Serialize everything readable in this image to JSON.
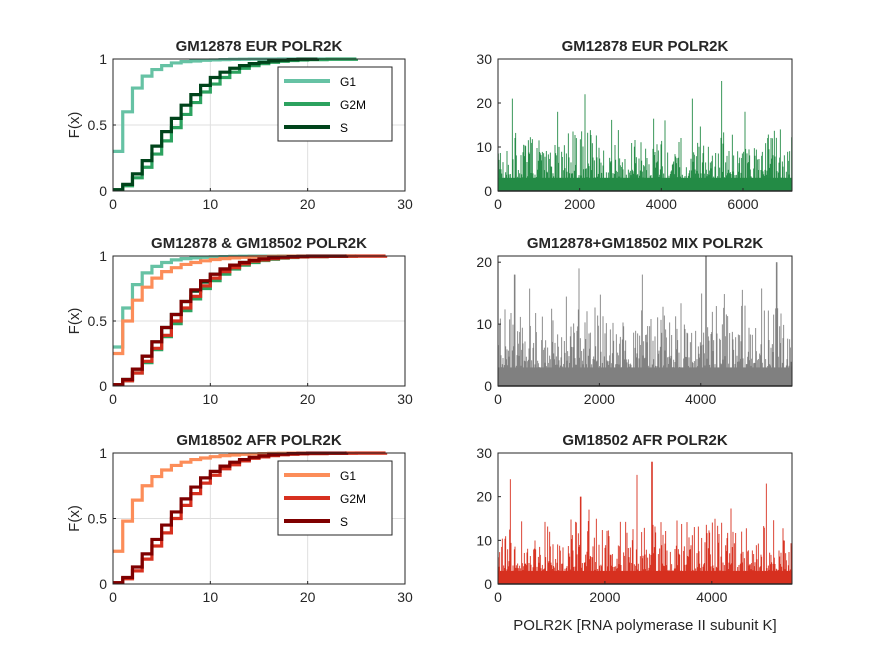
{
  "chart_data": [
    {
      "id": "ecdf-eur",
      "type": "line",
      "title": "GM12878 EUR POLR2K",
      "ylabel": "F(x)",
      "xlabel": "",
      "xlim": [
        0,
        30
      ],
      "ylim": [
        0,
        1
      ],
      "xticks": [
        "0",
        "10",
        "20",
        "30"
      ],
      "yticks": [
        "0",
        "0.5",
        "1"
      ],
      "grid": true,
      "legend": {
        "position": "inner-right",
        "entries": [
          "G1",
          "G2M",
          "S"
        ]
      },
      "series": [
        {
          "name": "G1",
          "color": "#66c2a4",
          "x": [
            0,
            1,
            2,
            3,
            4,
            5,
            6,
            7,
            8,
            9,
            10,
            11,
            12,
            13,
            14,
            15,
            17,
            20,
            25
          ],
          "y": [
            0.3,
            0.6,
            0.78,
            0.87,
            0.92,
            0.95,
            0.97,
            0.98,
            0.985,
            0.99,
            0.993,
            0.995,
            0.997,
            0.998,
            0.999,
            0.9995,
            0.9998,
            0.9999,
            1.0
          ]
        },
        {
          "name": "G2M",
          "color": "#2ca25f",
          "x": [
            0,
            1,
            2,
            3,
            4,
            5,
            6,
            7,
            8,
            9,
            10,
            11,
            12,
            13,
            14,
            15,
            16,
            17,
            18,
            19,
            20,
            22,
            25
          ],
          "y": [
            0.01,
            0.04,
            0.1,
            0.18,
            0.28,
            0.38,
            0.48,
            0.58,
            0.67,
            0.75,
            0.81,
            0.86,
            0.9,
            0.93,
            0.95,
            0.965,
            0.975,
            0.983,
            0.988,
            0.992,
            0.995,
            0.998,
            1.0
          ]
        },
        {
          "name": "S",
          "color": "#00441b",
          "x": [
            0,
            1,
            2,
            3,
            4,
            5,
            6,
            7,
            8,
            9,
            10,
            11,
            12,
            13,
            14,
            15,
            16,
            17,
            18,
            19,
            21
          ],
          "y": [
            0.01,
            0.05,
            0.13,
            0.23,
            0.34,
            0.45,
            0.55,
            0.65,
            0.73,
            0.8,
            0.86,
            0.9,
            0.93,
            0.95,
            0.965,
            0.975,
            0.985,
            0.99,
            0.995,
            0.998,
            1.0
          ]
        }
      ]
    },
    {
      "id": "hist-eur",
      "type": "bar",
      "title": "GM12878 EUR POLR2K",
      "xlim": [
        0,
        7200
      ],
      "ylim": [
        0,
        30
      ],
      "xticks": [
        "0",
        "2000",
        "4000",
        "6000"
      ],
      "xtick_values": [
        0,
        2000,
        4000,
        6000
      ],
      "yticks": [
        "0",
        "10",
        "20",
        "30"
      ],
      "ytick_values": [
        0,
        10,
        20,
        30
      ],
      "bar_color": "#238b45",
      "n_bars": 7200,
      "peaks": [
        {
          "x": 350,
          "y": 21
        },
        {
          "x": 2130,
          "y": 22
        },
        {
          "x": 4760,
          "y": 21
        },
        {
          "x": 5480,
          "y": 25
        },
        {
          "x": 1460,
          "y": 18
        },
        {
          "x": 6050,
          "y": 18
        }
      ],
      "typical_max": 14
    },
    {
      "id": "ecdf-mix",
      "type": "line",
      "title": "GM12878 & GM18502 POLR2K",
      "ylabel": "F(x)",
      "xlabel": "",
      "xlim": [
        0,
        30
      ],
      "ylim": [
        0,
        1
      ],
      "xticks": [
        "0",
        "10",
        "20",
        "30"
      ],
      "yticks": [
        "0",
        "0.5",
        "1"
      ],
      "grid": true,
      "series": [
        {
          "color": "#66c2a4",
          "x": [
            0,
            1,
            2,
            3,
            4,
            5,
            6,
            7,
            8,
            9,
            10,
            11,
            12,
            13,
            14,
            15,
            17,
            20,
            25
          ],
          "y": [
            0.3,
            0.6,
            0.78,
            0.87,
            0.92,
            0.95,
            0.97,
            0.98,
            0.985,
            0.99,
            0.993,
            0.995,
            0.997,
            0.998,
            0.999,
            0.9995,
            0.9998,
            0.9999,
            1.0
          ]
        },
        {
          "color": "#2ca25f",
          "x": [
            0,
            1,
            2,
            3,
            4,
            5,
            6,
            7,
            8,
            9,
            10,
            11,
            12,
            13,
            14,
            15,
            16,
            17,
            18,
            19,
            20,
            22,
            25
          ],
          "y": [
            0.01,
            0.04,
            0.1,
            0.18,
            0.28,
            0.38,
            0.48,
            0.58,
            0.67,
            0.75,
            0.81,
            0.86,
            0.9,
            0.93,
            0.95,
            0.965,
            0.975,
            0.983,
            0.988,
            0.992,
            0.995,
            0.998,
            1.0
          ]
        },
        {
          "color": "#00441b",
          "x": [
            0,
            1,
            2,
            3,
            4,
            5,
            6,
            7,
            8,
            9,
            10,
            11,
            12,
            13,
            14,
            15,
            16,
            17,
            18,
            19,
            21
          ],
          "y": [
            0.01,
            0.05,
            0.13,
            0.23,
            0.34,
            0.45,
            0.55,
            0.65,
            0.73,
            0.8,
            0.86,
            0.9,
            0.93,
            0.95,
            0.965,
            0.975,
            0.985,
            0.99,
            0.995,
            0.998,
            1.0
          ]
        },
        {
          "color": "#fc8d59",
          "x": [
            0,
            1,
            2,
            3,
            4,
            5,
            6,
            7,
            8,
            9,
            10,
            11,
            12,
            13,
            14,
            15,
            16,
            17,
            18,
            20,
            24,
            28
          ],
          "y": [
            0.25,
            0.5,
            0.66,
            0.76,
            0.83,
            0.88,
            0.91,
            0.935,
            0.95,
            0.963,
            0.973,
            0.98,
            0.985,
            0.99,
            0.993,
            0.995,
            0.997,
            0.998,
            0.999,
            0.9995,
            0.9998,
            1.0
          ]
        },
        {
          "color": "#d7301f",
          "x": [
            0,
            1,
            2,
            3,
            4,
            5,
            6,
            7,
            8,
            9,
            10,
            11,
            12,
            13,
            14,
            15,
            16,
            17,
            18,
            19,
            20,
            22,
            25,
            28
          ],
          "y": [
            0.01,
            0.04,
            0.1,
            0.19,
            0.29,
            0.39,
            0.5,
            0.6,
            0.69,
            0.77,
            0.83,
            0.88,
            0.91,
            0.94,
            0.96,
            0.97,
            0.98,
            0.986,
            0.99,
            0.993,
            0.995,
            0.998,
            0.999,
            1.0
          ]
        },
        {
          "color": "#7f0000",
          "x": [
            0,
            1,
            2,
            3,
            4,
            5,
            6,
            7,
            8,
            9,
            10,
            11,
            12,
            13,
            14,
            15,
            16,
            17,
            18,
            19,
            20,
            24
          ],
          "y": [
            0.01,
            0.05,
            0.13,
            0.23,
            0.34,
            0.45,
            0.55,
            0.65,
            0.74,
            0.81,
            0.86,
            0.9,
            0.93,
            0.95,
            0.967,
            0.978,
            0.986,
            0.991,
            0.995,
            0.997,
            0.999,
            1.0
          ]
        }
      ]
    },
    {
      "id": "hist-mix",
      "type": "bar",
      "title": "GM12878+GM18502 MIX POLR2K",
      "xlim": [
        0,
        5800
      ],
      "ylim": [
        0,
        21
      ],
      "xticks": [
        "0",
        "2000",
        "4000"
      ],
      "xtick_values": [
        0,
        2000,
        4000
      ],
      "yticks": [
        "0",
        "10",
        "20"
      ],
      "ytick_values": [
        0,
        10,
        20
      ],
      "bar_color": "#808080",
      "n_bars": 5800,
      "peaks": [
        {
          "x": 4100,
          "y": 21
        },
        {
          "x": 5500,
          "y": 20
        },
        {
          "x": 330,
          "y": 18
        },
        {
          "x": 1600,
          "y": 19
        },
        {
          "x": 2850,
          "y": 18
        }
      ],
      "typical_max": 13
    },
    {
      "id": "ecdf-afr",
      "type": "line",
      "title": "GM18502 AFR POLR2K",
      "ylabel": "F(x)",
      "xlabel": "",
      "xlim": [
        0,
        30
      ],
      "ylim": [
        0,
        1
      ],
      "xticks": [
        "0",
        "10",
        "20",
        "30"
      ],
      "yticks": [
        "0",
        "0.5",
        "1"
      ],
      "grid": true,
      "legend": {
        "position": "inner-right",
        "entries": [
          "G1",
          "G2M",
          "S"
        ]
      },
      "series": [
        {
          "name": "G1",
          "color": "#fc8d59",
          "x": [
            0,
            1,
            2,
            3,
            4,
            5,
            6,
            7,
            8,
            9,
            10,
            11,
            12,
            13,
            14,
            15,
            16,
            17,
            18,
            20,
            24,
            28
          ],
          "y": [
            0.25,
            0.48,
            0.64,
            0.75,
            0.82,
            0.87,
            0.905,
            0.93,
            0.95,
            0.962,
            0.972,
            0.98,
            0.985,
            0.99,
            0.993,
            0.995,
            0.997,
            0.998,
            0.999,
            0.9995,
            0.9998,
            1.0
          ]
        },
        {
          "name": "G2M",
          "color": "#d7301f",
          "x": [
            0,
            1,
            2,
            3,
            4,
            5,
            6,
            7,
            8,
            9,
            10,
            11,
            12,
            13,
            14,
            15,
            16,
            17,
            18,
            19,
            20,
            22,
            25,
            28
          ],
          "y": [
            0.01,
            0.04,
            0.1,
            0.19,
            0.29,
            0.39,
            0.5,
            0.6,
            0.69,
            0.77,
            0.83,
            0.88,
            0.91,
            0.94,
            0.96,
            0.97,
            0.98,
            0.986,
            0.99,
            0.993,
            0.995,
            0.998,
            0.999,
            1.0
          ]
        },
        {
          "name": "S",
          "color": "#7f0000",
          "x": [
            0,
            1,
            2,
            3,
            4,
            5,
            6,
            7,
            8,
            9,
            10,
            11,
            12,
            13,
            14,
            15,
            16,
            17,
            18,
            19,
            20,
            24
          ],
          "y": [
            0.01,
            0.05,
            0.13,
            0.23,
            0.34,
            0.45,
            0.55,
            0.65,
            0.74,
            0.81,
            0.86,
            0.9,
            0.93,
            0.95,
            0.967,
            0.978,
            0.986,
            0.991,
            0.995,
            0.997,
            0.999,
            1.0
          ]
        }
      ]
    },
    {
      "id": "hist-afr",
      "type": "bar",
      "title": "GM18502 AFR POLR2K",
      "xlabel": "POLR2K [RNA polymerase II subunit K]",
      "xlim": [
        0,
        5500
      ],
      "ylim": [
        0,
        30
      ],
      "xticks": [
        "0",
        "2000",
        "4000"
      ],
      "xtick_values": [
        0,
        2000,
        4000
      ],
      "yticks": [
        "0",
        "10",
        "20",
        "30"
      ],
      "ytick_values": [
        0,
        10,
        20,
        30
      ],
      "bar_color": "#d7301f",
      "n_bars": 5500,
      "peaks": [
        {
          "x": 2880,
          "y": 28
        },
        {
          "x": 2600,
          "y": 25
        },
        {
          "x": 230,
          "y": 24
        },
        {
          "x": 5020,
          "y": 23
        },
        {
          "x": 1550,
          "y": 20
        }
      ],
      "typical_max": 15
    }
  ]
}
